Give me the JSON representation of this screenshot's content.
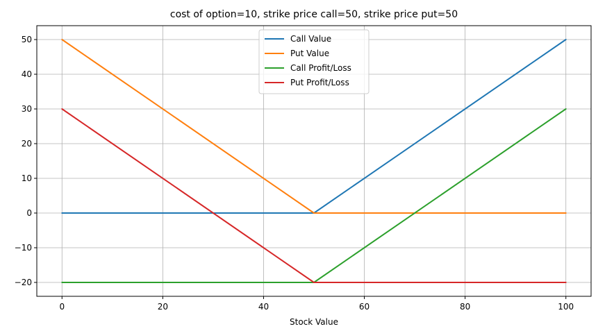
{
  "chart_data": {
    "type": "line",
    "title": "cost of option=10, strike price call=50, strike price put=50",
    "xlabel": "Stock Value",
    "ylabel": "",
    "xlim": [
      -5,
      105
    ],
    "ylim": [
      -24,
      54
    ],
    "xticks": [
      0,
      20,
      40,
      60,
      80,
      100
    ],
    "yticks": [
      -20,
      -10,
      0,
      10,
      20,
      30,
      40,
      50
    ],
    "grid": true,
    "legend_position": "top-center",
    "series": [
      {
        "name": "Call Value",
        "color": "#1f77b4",
        "x": [
          0,
          50,
          100
        ],
        "y": [
          0,
          0,
          50
        ]
      },
      {
        "name": "Put Value",
        "color": "#ff7f0e",
        "x": [
          0,
          50,
          100
        ],
        "y": [
          50,
          0,
          0
        ]
      },
      {
        "name": "Call Profit/Loss",
        "color": "#2ca02c",
        "x": [
          0,
          50,
          100
        ],
        "y": [
          -20,
          -20,
          30
        ]
      },
      {
        "name": "Put Profit/Loss",
        "color": "#d62728",
        "x": [
          0,
          50,
          100
        ],
        "y": [
          30,
          -20,
          -20
        ]
      }
    ]
  }
}
